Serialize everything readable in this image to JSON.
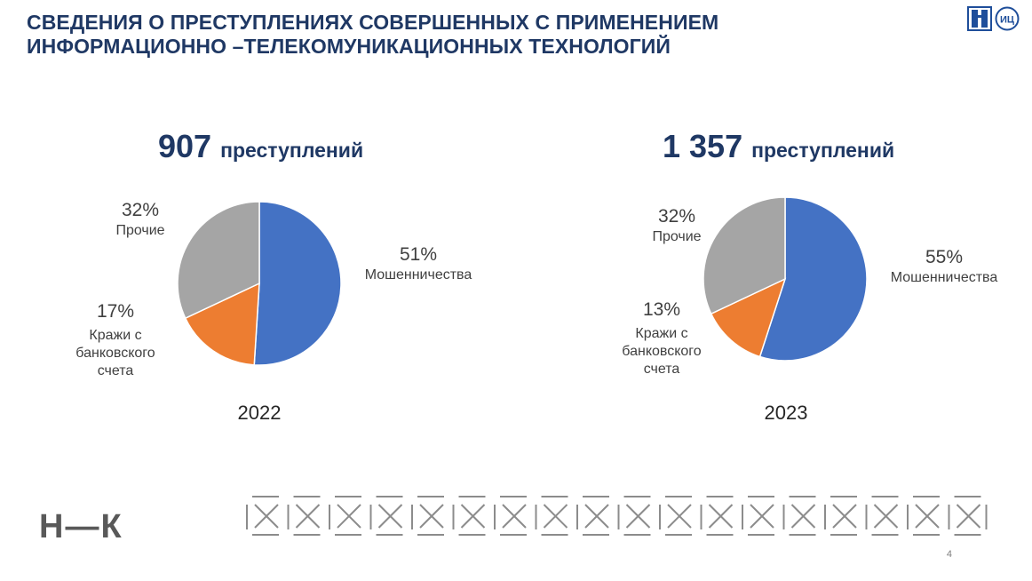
{
  "title_lines": [
    "СВЕДЕНИЯ О ПРЕСТУПЛЕНИЯХ СОВЕРШЕННЫХ С ПРИМЕНЕНИЕМ",
    "ИНФОРМАЦИОННО –ТЕЛЕКОМУНИКАЦИОННЫХ ТЕХНОЛОГИЙ"
  ],
  "logo_text": "ИЦ",
  "brand": "Н—К",
  "page_number": "4",
  "colors": {
    "title": "#1f3864",
    "fraud": "#4472c4",
    "bank_theft": "#ed7d31",
    "other": "#a5a5a5"
  },
  "chart_data": [
    {
      "type": "pie",
      "total_number": "907",
      "total_word": "преступлений",
      "year": "2022",
      "slices": [
        {
          "pct_label": "51%",
          "name": "Мошенничества",
          "value": 51,
          "color": "#4472c4"
        },
        {
          "pct_label": "17%",
          "name": "Кражи с банковского счета",
          "value": 17,
          "color": "#ed7d31"
        },
        {
          "pct_label": "32%",
          "name": "Прочие",
          "value": 32,
          "color": "#a5a5a5"
        }
      ]
    },
    {
      "type": "pie",
      "total_number": "1 357",
      "total_word": "преступлений",
      "year": "2023",
      "slices": [
        {
          "pct_label": "55%",
          "name": "Мошенничества",
          "value": 55,
          "color": "#4472c4"
        },
        {
          "pct_label": "13%",
          "name": "Кражи с банковского счета",
          "value": 13,
          "color": "#ed7d31"
        },
        {
          "pct_label": "32%",
          "name": "Прочие",
          "value": 32,
          "color": "#a5a5a5"
        }
      ]
    }
  ]
}
